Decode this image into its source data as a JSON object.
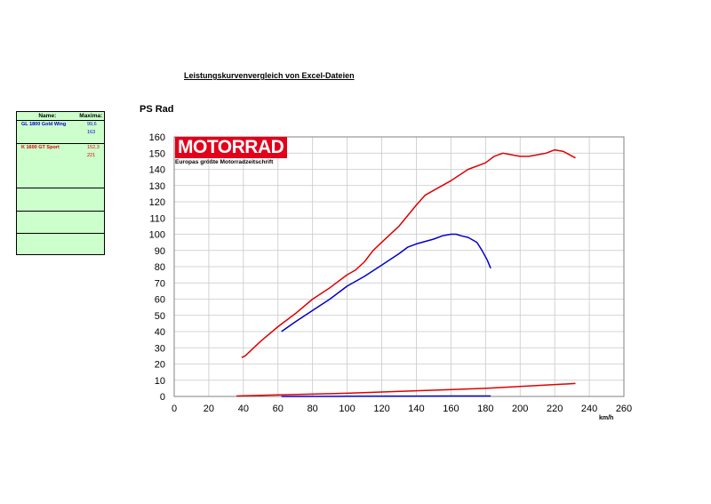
{
  "page_title": "Leistungskurvenvergleich von Excel-Dateien",
  "legend": {
    "header_name": "Name:",
    "header_max": "Maxima:",
    "entries": [
      {
        "name": "GL 1800 Gold Wing",
        "max_power": "99,6",
        "max_speed": "163",
        "color": "#0000cc"
      },
      {
        "name": "K 1600 GT Sport",
        "max_power": "152,3",
        "max_speed": "221",
        "color": "#e00000"
      }
    ]
  },
  "logo": {
    "brand": "MOTORRAD",
    "tagline": "Europas größte Motorradzeitschrift",
    "color": "#e2001a"
  },
  "chart_data": {
    "type": "line",
    "ylabel": "PS Rad",
    "xlabel": "km/h",
    "xlim": [
      0,
      260
    ],
    "ylim": [
      0,
      160
    ],
    "x_ticks": [
      "0",
      "20",
      "40",
      "60",
      "80",
      "100",
      "120",
      "140",
      "160",
      "180",
      "200",
      "220",
      "240",
      "260"
    ],
    "y_ticks": [
      "0",
      "10",
      "20",
      "30",
      "40",
      "50",
      "60",
      "70",
      "80",
      "90",
      "100",
      "110",
      "120",
      "130",
      "140",
      "150",
      "160"
    ],
    "grid": true,
    "series": [
      {
        "color": "#e00000",
        "x": [
          39,
          41,
          45,
          50,
          60,
          70,
          80,
          90,
          100,
          105,
          110,
          115,
          120,
          130,
          140,
          145,
          150,
          160,
          170,
          180,
          185,
          190,
          195,
          200,
          205,
          210,
          215,
          220,
          225,
          232
        ],
        "y": [
          24,
          25,
          29,
          34,
          43,
          51,
          60,
          67,
          75,
          78,
          83,
          90,
          95,
          105,
          118,
          124,
          127,
          133,
          140,
          144,
          148,
          150,
          149,
          148,
          148,
          149,
          150,
          152,
          151,
          147
        ]
      },
      {
        "color": "#0000cc",
        "x": [
          62,
          70,
          80,
          90,
          100,
          110,
          120,
          130,
          135,
          140,
          150,
          155,
          160,
          163,
          166,
          170,
          175,
          178,
          181,
          183
        ],
        "y": [
          40,
          46,
          53,
          60,
          68,
          74,
          81,
          88,
          92,
          94,
          97,
          99,
          100,
          100,
          99,
          98,
          95,
          90,
          84,
          79
        ]
      },
      {
        "color": "#e00000",
        "x": [
          36,
          60,
          100,
          140,
          180,
          232
        ],
        "y": [
          0.3,
          1,
          2,
          3.5,
          5,
          8
        ]
      },
      {
        "color": "#0000cc",
        "x": [
          62,
          100,
          140,
          183
        ],
        "y": [
          0,
          0.1,
          0.2,
          0.3
        ]
      }
    ]
  }
}
